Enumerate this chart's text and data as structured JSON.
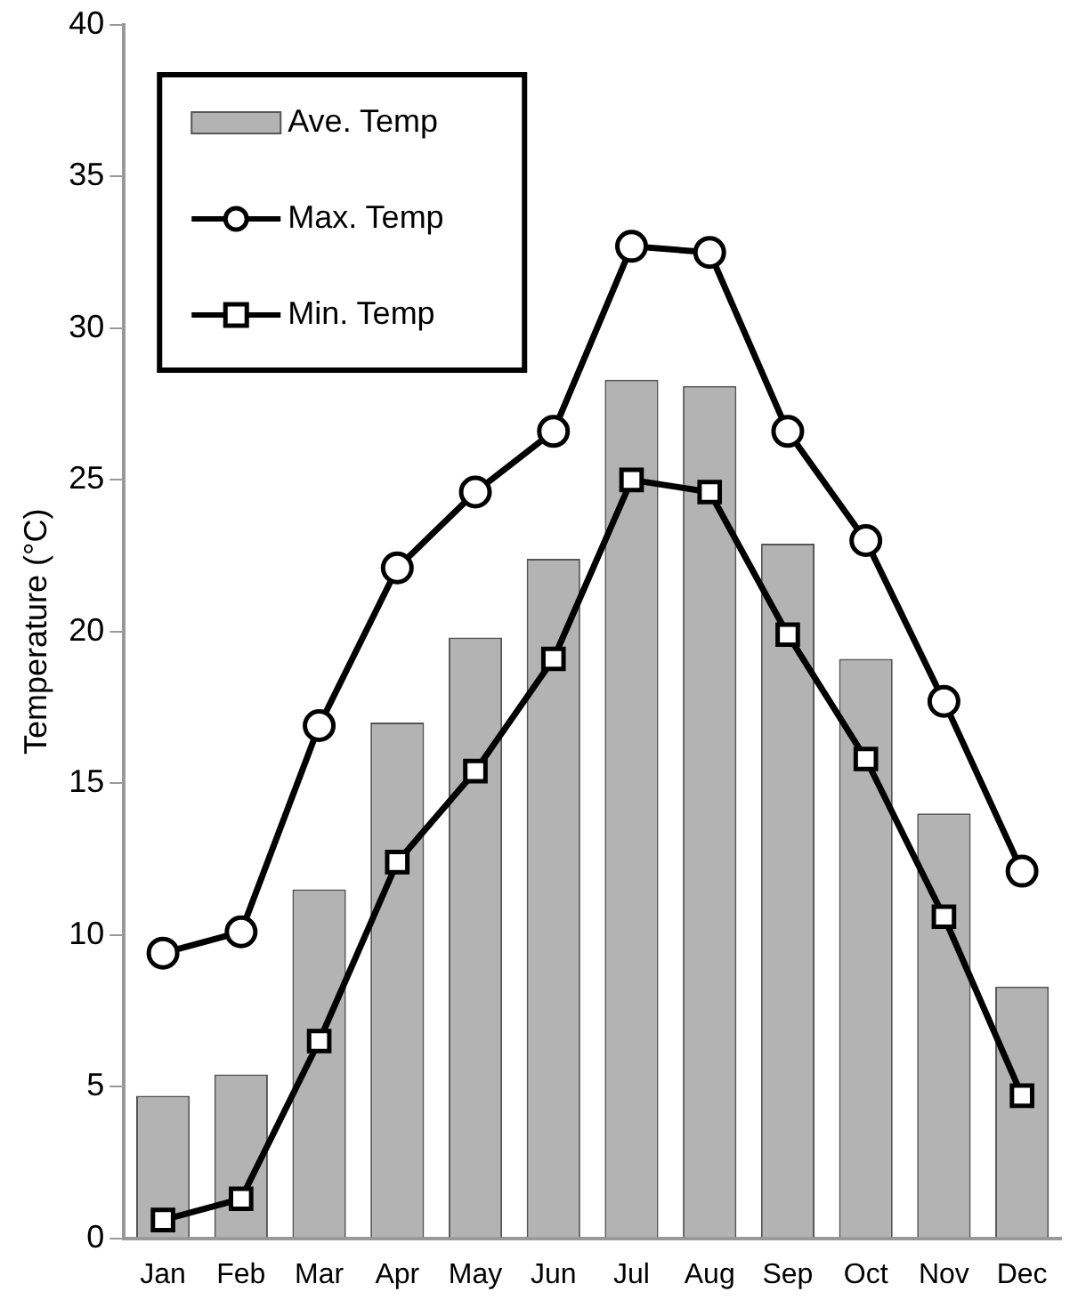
{
  "chart_data": {
    "type": "bar",
    "ylabel": "Temperature (°C)",
    "categories": [
      "Jan",
      "Feb",
      "Mar",
      "Apr",
      "May",
      "Jun",
      "Jul",
      "Aug",
      "Sep",
      "Oct",
      "Nov",
      "Dec"
    ],
    "ylim": [
      0,
      40
    ],
    "yticks": [
      0,
      5,
      10,
      15,
      20,
      25,
      30,
      35,
      40
    ],
    "grid": false,
    "legend": "top left",
    "series": [
      {
        "name": "Ave. Temp",
        "color": "#b3b3b3",
        "values": [
          4.7,
          5.4,
          11.5,
          17.0,
          19.8,
          22.4,
          28.3,
          28.1,
          22.9,
          19.1,
          14.0,
          8.3
        ]
      },
      {
        "name": "Max. Temp",
        "type": "line",
        "marker": "circle",
        "color": "#000000",
        "values": [
          9.4,
          10.1,
          16.9,
          22.1,
          24.6,
          26.6,
          32.7,
          32.5,
          26.6,
          23.0,
          17.7,
          12.1
        ]
      },
      {
        "name": "Min. Temp",
        "type": "line",
        "marker": "square",
        "color": "#000000",
        "values": [
          0.6,
          1.3,
          6.5,
          12.4,
          15.4,
          19.1,
          25.0,
          24.6,
          19.9,
          15.8,
          10.6,
          4.7
        ]
      }
    ]
  }
}
